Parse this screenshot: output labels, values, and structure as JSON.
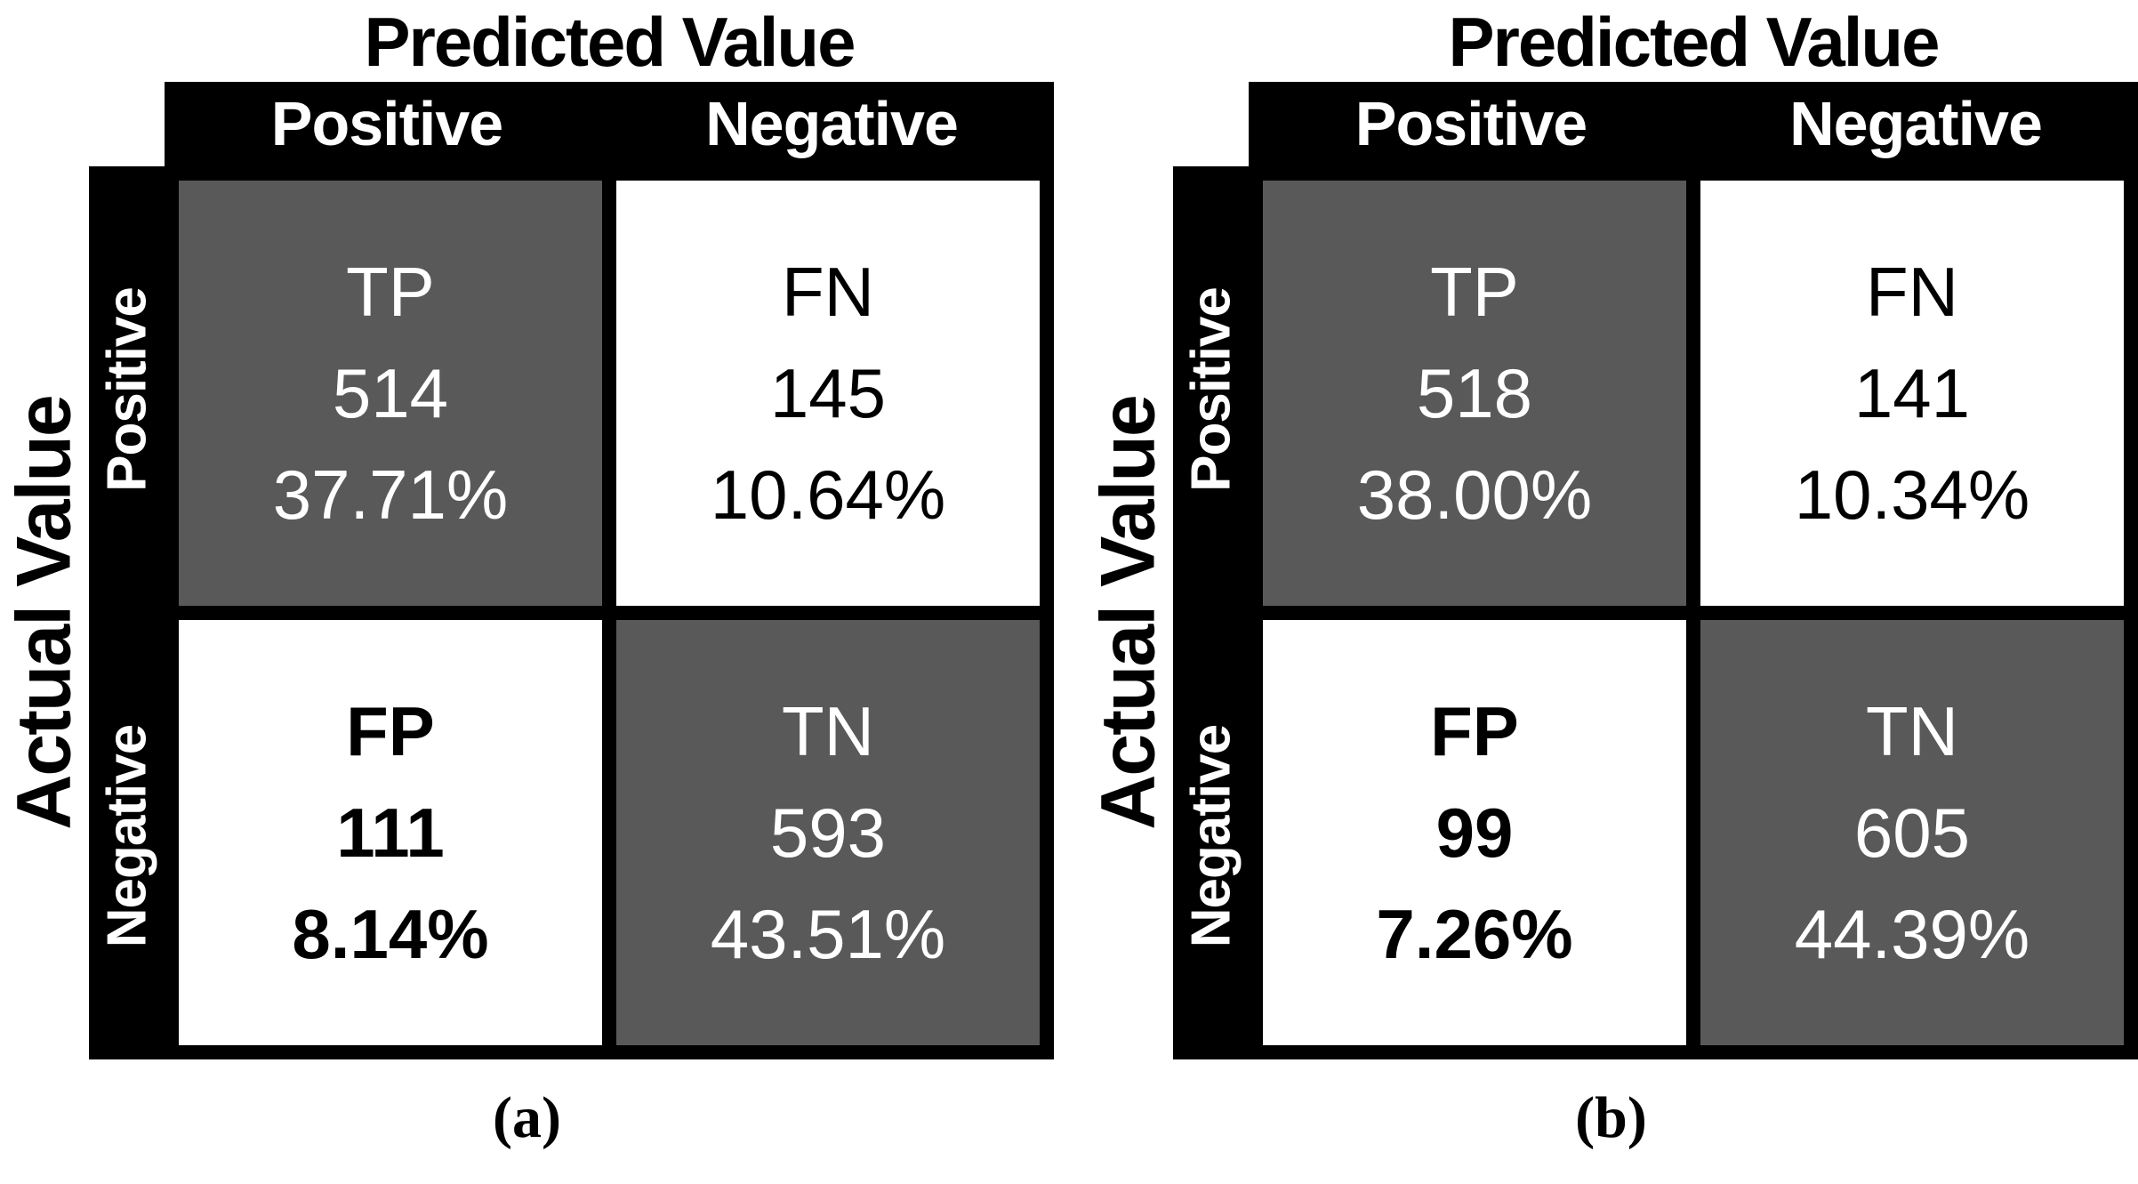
{
  "colors": {
    "shaded_cell": "#595959",
    "band_background": "#000000",
    "shaded_cell_text": "#ffffff",
    "plain_cell_text": "#000000"
  },
  "panels": [
    {
      "panel_label": "(a)",
      "predicted_axis_title": "Predicted Value",
      "actual_axis_title": "Actual Value",
      "predicted_categories": [
        "Positive",
        "Negative"
      ],
      "actual_categories": [
        "Positive",
        "Negative"
      ],
      "cells": [
        {
          "abbr": "TP",
          "count": "514",
          "percent": "37.71%"
        },
        {
          "abbr": "FN",
          "count": "145",
          "percent": "10.64%"
        },
        {
          "abbr": "FP",
          "count": "111",
          "percent": "8.14%"
        },
        {
          "abbr": "TN",
          "count": "593",
          "percent": "43.51%"
        }
      ]
    },
    {
      "panel_label": "(b)",
      "predicted_axis_title": "Predicted Value",
      "actual_axis_title": "Actual Value",
      "predicted_categories": [
        "Positive",
        "Negative"
      ],
      "actual_categories": [
        "Positive",
        "Negative"
      ],
      "cells": [
        {
          "abbr": "TP",
          "count": "518",
          "percent": "38.00%"
        },
        {
          "abbr": "FN",
          "count": "141",
          "percent": "10.34%"
        },
        {
          "abbr": "FP",
          "count": "99",
          "percent": "7.26%"
        },
        {
          "abbr": "TN",
          "count": "605",
          "percent": "44.39%"
        }
      ]
    }
  ],
  "chart_data": [
    {
      "type": "heatmap",
      "title": "(a)",
      "xlabel": "Predicted Value",
      "ylabel": "Actual Value",
      "x_categories": [
        "Positive",
        "Negative"
      ],
      "y_categories": [
        "Positive",
        "Negative"
      ],
      "legend_position": "none",
      "grid": false,
      "cells": [
        {
          "actual": "Positive",
          "predicted": "Positive",
          "label": "TP",
          "count": 514,
          "percent": 37.71,
          "shaded": true
        },
        {
          "actual": "Positive",
          "predicted": "Negative",
          "label": "FN",
          "count": 145,
          "percent": 10.64,
          "shaded": false
        },
        {
          "actual": "Negative",
          "predicted": "Positive",
          "label": "FP",
          "count": 111,
          "percent": 8.14,
          "shaded": false
        },
        {
          "actual": "Negative",
          "predicted": "Negative",
          "label": "TN",
          "count": 593,
          "percent": 43.51,
          "shaded": true
        }
      ]
    },
    {
      "type": "heatmap",
      "title": "(b)",
      "xlabel": "Predicted Value",
      "ylabel": "Actual Value",
      "x_categories": [
        "Positive",
        "Negative"
      ],
      "y_categories": [
        "Positive",
        "Negative"
      ],
      "legend_position": "none",
      "grid": false,
      "cells": [
        {
          "actual": "Positive",
          "predicted": "Positive",
          "label": "TP",
          "count": 518,
          "percent": 38.0,
          "shaded": true
        },
        {
          "actual": "Positive",
          "predicted": "Negative",
          "label": "FN",
          "count": 141,
          "percent": 10.34,
          "shaded": false
        },
        {
          "actual": "Negative",
          "predicted": "Positive",
          "label": "FP",
          "count": 99,
          "percent": 7.26,
          "shaded": false
        },
        {
          "actual": "Negative",
          "predicted": "Negative",
          "label": "TN",
          "count": 605,
          "percent": 44.39,
          "shaded": true
        }
      ]
    }
  ]
}
